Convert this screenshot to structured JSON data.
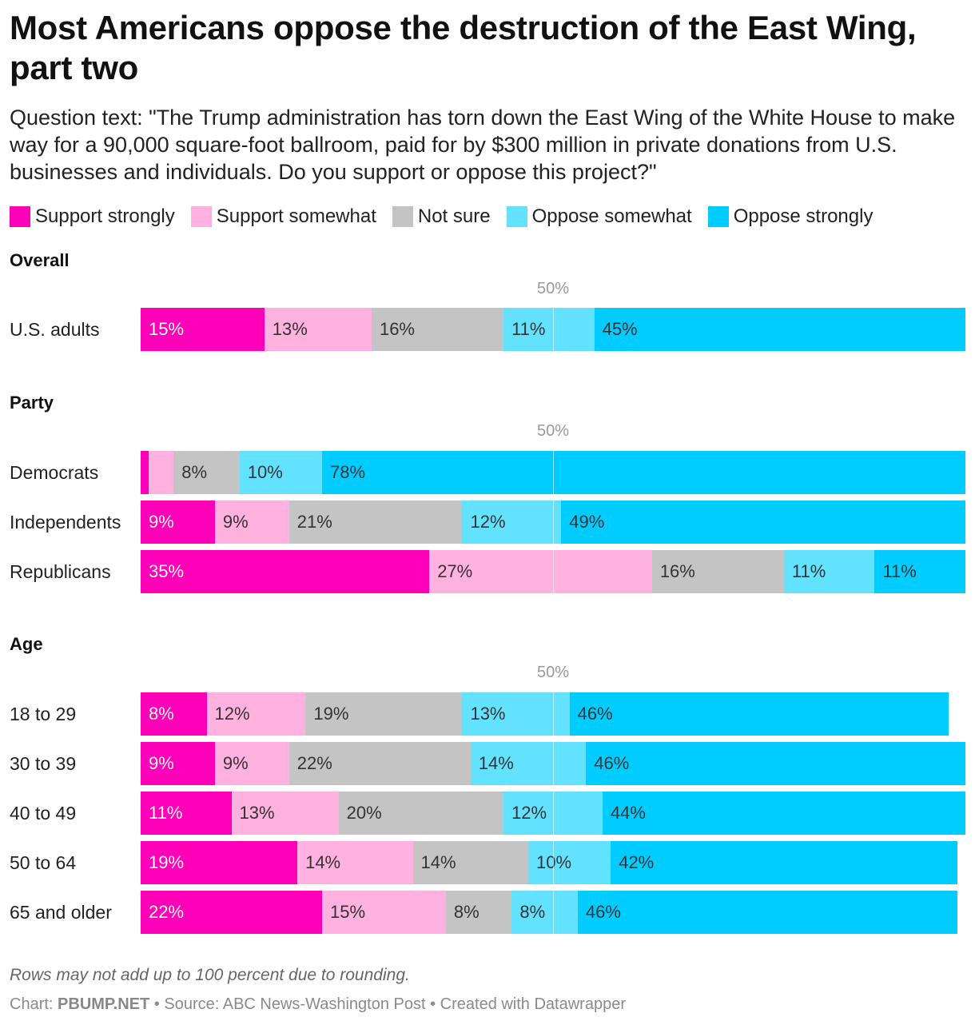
{
  "title": "Most Americans oppose the destruction of the East Wing, part two",
  "subtitle": "Question text: \"The Trump administration has torn down the East Wing of the White House to make way for a 90,000 square-foot ballroom, paid for by $300 million in private donations from U.S. businesses and individuals. Do you support or oppose this project?\"",
  "legend": [
    {
      "label": "Support strongly",
      "color": "#ff00b8"
    },
    {
      "label": "Support somewhat",
      "color": "#ffb1df"
    },
    {
      "label": "Not sure",
      "color": "#c4c4c4"
    },
    {
      "label": "Oppose somewhat",
      "color": "#63e2ff"
    },
    {
      "label": "Oppose strongly",
      "color": "#00ccff"
    }
  ],
  "reference_label": "50%",
  "notes": "Rows may not add up to 100 percent due to rounding.",
  "footer": {
    "chart_prefix": "Chart: ",
    "chart_by": "PBUMP.NET",
    "rest": " • Source: ABC News-Washington Post • Created with Datawrapper"
  },
  "chart_data": {
    "type": "bar",
    "orientation": "horizontal",
    "stacked": true,
    "reference_line": 50,
    "series_names": [
      "Support strongly",
      "Support somewhat",
      "Not sure",
      "Oppose somewhat",
      "Oppose strongly"
    ],
    "groups": [
      {
        "name": "Overall",
        "rows": [
          {
            "label": "U.S. adults",
            "values": [
              15,
              13,
              16,
              11,
              45
            ],
            "labels": [
              "15%",
              "13%",
              "16%",
              "11%",
              "45%"
            ]
          }
        ]
      },
      {
        "name": "Party",
        "rows": [
          {
            "label": "Democrats",
            "values": [
              1,
              3,
              8,
              10,
              78
            ],
            "labels": [
              "",
              "",
              "8%",
              "10%",
              "78%"
            ]
          },
          {
            "label": "Independents",
            "values": [
              9,
              9,
              21,
              12,
              49
            ],
            "labels": [
              "9%",
              "9%",
              "21%",
              "12%",
              "49%"
            ]
          },
          {
            "label": "Republicans",
            "values": [
              35,
              27,
              16,
              11,
              11
            ],
            "labels": [
              "35%",
              "27%",
              "16%",
              "11%",
              "11%"
            ]
          }
        ]
      },
      {
        "name": "Age",
        "rows": [
          {
            "label": "18 to 29",
            "values": [
              8,
              12,
              19,
              13,
              46
            ],
            "labels": [
              "8%",
              "12%",
              "19%",
              "13%",
              "46%"
            ]
          },
          {
            "label": "30 to 39",
            "values": [
              9,
              9,
              22,
              14,
              46
            ],
            "labels": [
              "9%",
              "9%",
              "22%",
              "14%",
              "46%"
            ]
          },
          {
            "label": "40 to 49",
            "values": [
              11,
              13,
              20,
              12,
              44
            ],
            "labels": [
              "11%",
              "13%",
              "20%",
              "12%",
              "44%"
            ]
          },
          {
            "label": "50 to 64",
            "values": [
              19,
              14,
              14,
              10,
              42
            ],
            "labels": [
              "19%",
              "14%",
              "14%",
              "10%",
              "42%"
            ]
          },
          {
            "label": "65 and older",
            "values": [
              22,
              15,
              8,
              8,
              46
            ],
            "labels": [
              "22%",
              "15%",
              "8%",
              "8%",
              "46%"
            ]
          }
        ]
      }
    ]
  }
}
